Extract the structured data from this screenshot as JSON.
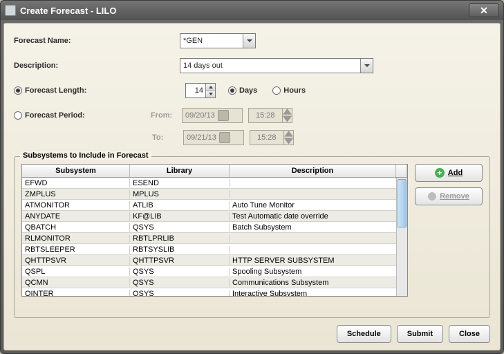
{
  "window": {
    "title": "Create Forecast - LILO"
  },
  "labels": {
    "forecast_name": "Forecast Name:",
    "description": "Description:",
    "forecast_length": "Forecast Length:",
    "forecast_period": "Forecast Period:",
    "from": "From:",
    "to": "To:",
    "days": "Days",
    "hours": "Hours"
  },
  "values": {
    "forecast_name": "*GEN",
    "description": "14 days out",
    "length": "14",
    "from_date": "09/20/13",
    "from_time": "15:28",
    "to_date": "09/21/13",
    "to_time": "15:28",
    "length_mode": "length",
    "units": "days"
  },
  "fieldset": {
    "legend": "Subsystems to Include in Forecast"
  },
  "columns": {
    "subsystem": "Subsystem",
    "library": "Library",
    "description": "Description"
  },
  "rows": [
    {
      "sub": "EFWD",
      "lib": "ESEND",
      "desc": ""
    },
    {
      "sub": "ZMPLUS",
      "lib": "MPLUS",
      "desc": ""
    },
    {
      "sub": "ATMONITOR",
      "lib": "ATLIB",
      "desc": "Auto Tune Monitor"
    },
    {
      "sub": "ANYDATE",
      "lib": "KF@LIB",
      "desc": "Test Automatic date override"
    },
    {
      "sub": "QBATCH",
      "lib": "QSYS",
      "desc": "Batch Subsystem"
    },
    {
      "sub": "RLMONITOR",
      "lib": "RBTLPRLIB",
      "desc": ""
    },
    {
      "sub": "RBTSLEEPER",
      "lib": "RBTSYSLIB",
      "desc": ""
    },
    {
      "sub": "QHTTPSVR",
      "lib": "QHTTPSVR",
      "desc": "HTTP SERVER SUBSYSTEM"
    },
    {
      "sub": "QSPL",
      "lib": "QSYS",
      "desc": "Spooling Subsystem"
    },
    {
      "sub": "QCMN",
      "lib": "QSYS",
      "desc": "Communications Subsystem"
    },
    {
      "sub": "QINTER",
      "lib": "QSYS",
      "desc": "Interactive Subsystem"
    }
  ],
  "buttons": {
    "add": "Add",
    "remove": "Remove",
    "schedule": "Schedule",
    "submit": "Submit",
    "close": "Close"
  },
  "colors": {
    "client_bg_top": "#f5f2e8",
    "client_bg_bot": "#eae5d4",
    "border": "#a8a393",
    "row_alt": "#ecece5",
    "scroll_thumb": "#9ec7ec",
    "add_icon": "#4caf50",
    "disabled_text": "#9a9a9a"
  }
}
